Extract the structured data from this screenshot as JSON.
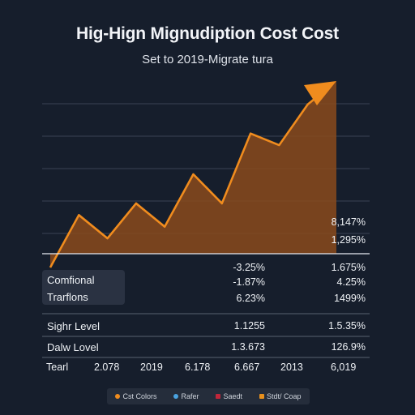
{
  "title": "Hig-Hign Mignudiption Cost Cost",
  "subtitle": "Set to 2019-Migrate tura",
  "chart_data": {
    "type": "area",
    "series_color": "#f08c1e",
    "fill_color": "#8a4a1c",
    "points": [
      [
        0,
        0
      ],
      [
        1,
        45
      ],
      [
        2,
        25
      ],
      [
        3,
        55
      ],
      [
        4,
        35
      ],
      [
        5,
        80
      ],
      [
        6,
        55
      ],
      [
        7,
        115
      ],
      [
        8,
        105
      ],
      [
        9,
        140
      ],
      [
        10,
        160
      ]
    ],
    "x_range": [
      0,
      10
    ],
    "y_range": [
      0,
      160
    ],
    "grid": true,
    "annotations_right": [
      "8,147%",
      "1,295%"
    ]
  },
  "table": {
    "rows": [
      {
        "label": "",
        "c1": "-3.25%",
        "c2": "1.675%"
      },
      {
        "label": "Comfional",
        "c1": "-1.87%",
        "c2": "4.25%"
      },
      {
        "label": "Trarflons",
        "c1": "6.23%",
        "c2": "1499%"
      },
      {
        "label": "Sighr Level",
        "c1": "1.1255",
        "c2": "1.5.35%"
      },
      {
        "label": "Dalw Lovel",
        "c1": "1.3.673",
        "c2": "126.9%"
      }
    ]
  },
  "x_axis": {
    "label": "Tearl",
    "ticks": [
      "2.078",
      "2019",
      "6.178",
      "6.667",
      "2013",
      "6,019"
    ]
  },
  "legend": [
    {
      "label": "Cst Colors",
      "color": "#f08c1e",
      "shape": "dot"
    },
    {
      "label": "Rafer",
      "color": "#4aa3e0",
      "shape": "dot"
    },
    {
      "label": "Saedt",
      "color": "#c0263a",
      "shape": "square"
    },
    {
      "label": "Stdt/ Coap",
      "color": "#e8901c",
      "shape": "square"
    }
  ]
}
